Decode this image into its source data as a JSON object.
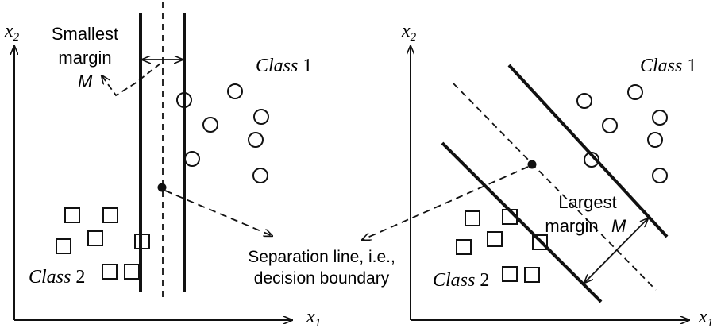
{
  "left_panel": {
    "y_axis_label": "x",
    "y_axis_sub": "2",
    "x_axis_label": "x",
    "x_axis_sub": "1",
    "margin_label_line1": "Smallest",
    "margin_label_line2": "margin",
    "margin_symbol": "M",
    "class1_word": "Class",
    "class1_num": "1",
    "class2_word": "Class",
    "class2_num": "2"
  },
  "right_panel": {
    "y_axis_label": "x",
    "y_axis_sub": "2",
    "x_axis_label": "x",
    "x_axis_sub": "1",
    "margin_label_line1": "Largest",
    "margin_label_line2": "margin",
    "margin_symbol": "M",
    "class1_word": "Class",
    "class1_num": "1",
    "class2_word": "Class",
    "class2_num": "2"
  },
  "shared": {
    "separation_line1": "Separation line, i.e.,",
    "separation_line2": "decision boundary"
  },
  "colors": {
    "ink": "#111111",
    "background": "#ffffff"
  }
}
